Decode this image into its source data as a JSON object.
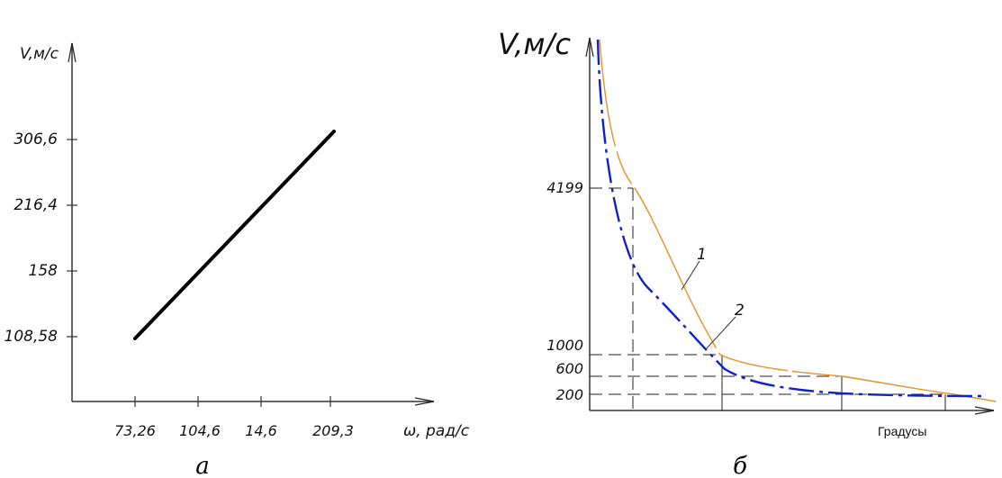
{
  "chart_data": [
    {
      "type": "line",
      "panel_caption": "а",
      "ylabel": "V,м/с",
      "xlabel": "ω, рад/с",
      "x_ticks": [
        "73,26",
        "104,6",
        "14,6",
        "209,3"
      ],
      "y_ticks": [
        "108,58",
        "158",
        "216,4",
        "306,6"
      ],
      "series": [
        {
          "x": [
            "73,26",
            "209,3"
          ],
          "y": [
            "108,58",
            "306,6"
          ]
        }
      ]
    },
    {
      "type": "line",
      "panel_caption": "б",
      "ylabel": "V,м/с",
      "xlabel": "Градусы",
      "y_ticks": [
        "4199",
        "1000",
        "600",
        "200"
      ],
      "series": [
        {
          "name": "1",
          "color": "#e8902a"
        },
        {
          "name": "2",
          "color": "#1020cc"
        }
      ]
    }
  ]
}
